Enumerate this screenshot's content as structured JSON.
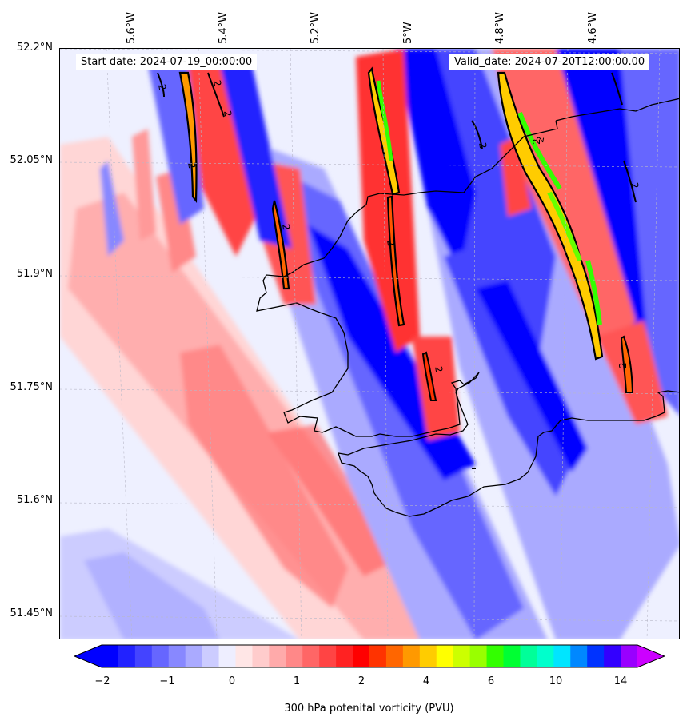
{
  "map": {
    "start_date": "Start date: 2024-07-19_00:00:00",
    "valid_date": "Valid_date: 2024-07-20T12:00:00.00",
    "longitude_labels": [
      "5.6°W",
      "5.4°W",
      "5.2°W",
      "5°W",
      "4.8°W",
      "4.6°W"
    ],
    "latitude_labels": [
      "52.2°N",
      "52.05°N",
      "51.9°N",
      "51.75°N",
      "51.6°N",
      "51.45°N"
    ],
    "contour_label": "2",
    "field": "300 hPa potential vorticity"
  },
  "colorbar": {
    "title": "300 hPa potenital vorticity (PVU)",
    "ticks": [
      "−2",
      "−1",
      "0",
      "1",
      "2",
      "4",
      "6",
      "10",
      "14"
    ],
    "colors": [
      "#0000ff",
      "#2222ff",
      "#4444ff",
      "#6666ff",
      "#8888ff",
      "#aaaaff",
      "#ccccff",
      "#eeeeff",
      "#ffe6e6",
      "#ffcccc",
      "#ffaaaa",
      "#ff8888",
      "#ff6666",
      "#ff4444",
      "#ff2222",
      "#ff0000",
      "#ff3300",
      "#ff6600",
      "#ff9900",
      "#ffcc00",
      "#ffff00",
      "#ccff00",
      "#99ff00",
      "#33ff00",
      "#00ff33",
      "#00ff99",
      "#00ffcc",
      "#00e5ff",
      "#0088ff",
      "#0033ff",
      "#3300ff",
      "#9900ff"
    ],
    "extend_low_color": "#0000ff",
    "extend_high_color": "#cc00ff"
  }
}
